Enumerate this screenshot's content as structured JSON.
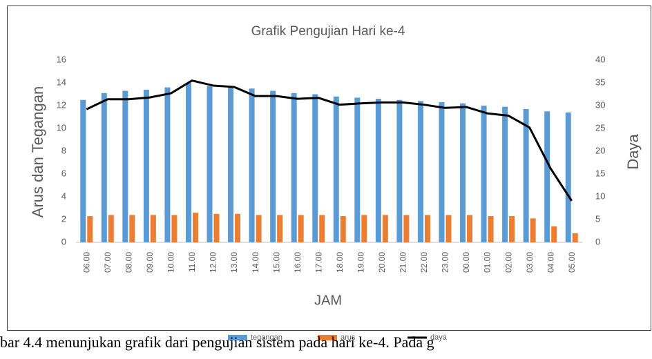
{
  "chart_data": {
    "type": "bar-line",
    "title": "Grafik Pengujian Hari ke-4",
    "y_label": "Arus dan Tegangan",
    "y2_label": "Daya",
    "x_label": "JAM",
    "categories": [
      "06.00",
      "07.00",
      "08.00",
      "09.00",
      "10.00",
      "11.00",
      "12.00",
      "13.00",
      "14.00",
      "15.00",
      "16.00",
      "17.00",
      "18.00",
      "19.00",
      "20.00",
      "21.00",
      "22.00",
      "23.00",
      "00.00",
      "01.00",
      "02.00",
      "03.00",
      "04.00",
      "05.00"
    ],
    "series": [
      {
        "name": "tegangan",
        "type": "bar",
        "color": "#5b9bd5",
        "values": [
          12.5,
          13.1,
          13.3,
          13.4,
          13.6,
          14.0,
          13.7,
          13.6,
          13.5,
          13.3,
          13.1,
          13.0,
          12.8,
          12.7,
          12.6,
          12.5,
          12.4,
          12.3,
          12.2,
          12.0,
          11.9,
          11.7,
          11.5,
          11.4
        ]
      },
      {
        "name": "arus",
        "type": "bar",
        "color": "#ed7d31",
        "values": [
          2.3,
          2.4,
          2.4,
          2.4,
          2.4,
          2.6,
          2.5,
          2.5,
          2.4,
          2.4,
          2.4,
          2.4,
          2.3,
          2.4,
          2.4,
          2.4,
          2.4,
          2.4,
          2.4,
          2.3,
          2.3,
          2.1,
          1.4,
          0.8
        ]
      },
      {
        "name": "daya",
        "type": "line",
        "axis": "y2",
        "color": "#000000",
        "values": [
          29.2,
          31.4,
          31.4,
          31.8,
          32.7,
          35.5,
          34.4,
          34.1,
          32.1,
          32.1,
          31.5,
          31.7,
          30.2,
          30.5,
          30.7,
          30.7,
          30.2,
          29.5,
          29.7,
          28.3,
          27.8,
          25.2,
          16.2,
          9.1
        ]
      }
    ],
    "ylim": [
      0,
      16
    ],
    "yticks": [
      0,
      2,
      4,
      6,
      8,
      10,
      12,
      14,
      16
    ],
    "y2lim": [
      0,
      40
    ],
    "y2ticks": [
      0,
      5,
      10,
      15,
      20,
      25,
      30,
      35,
      40
    ]
  },
  "paragraph": "bar 4.4 menunjukan grafik dari pengujian sistem pada hari ke-4. Pada g"
}
